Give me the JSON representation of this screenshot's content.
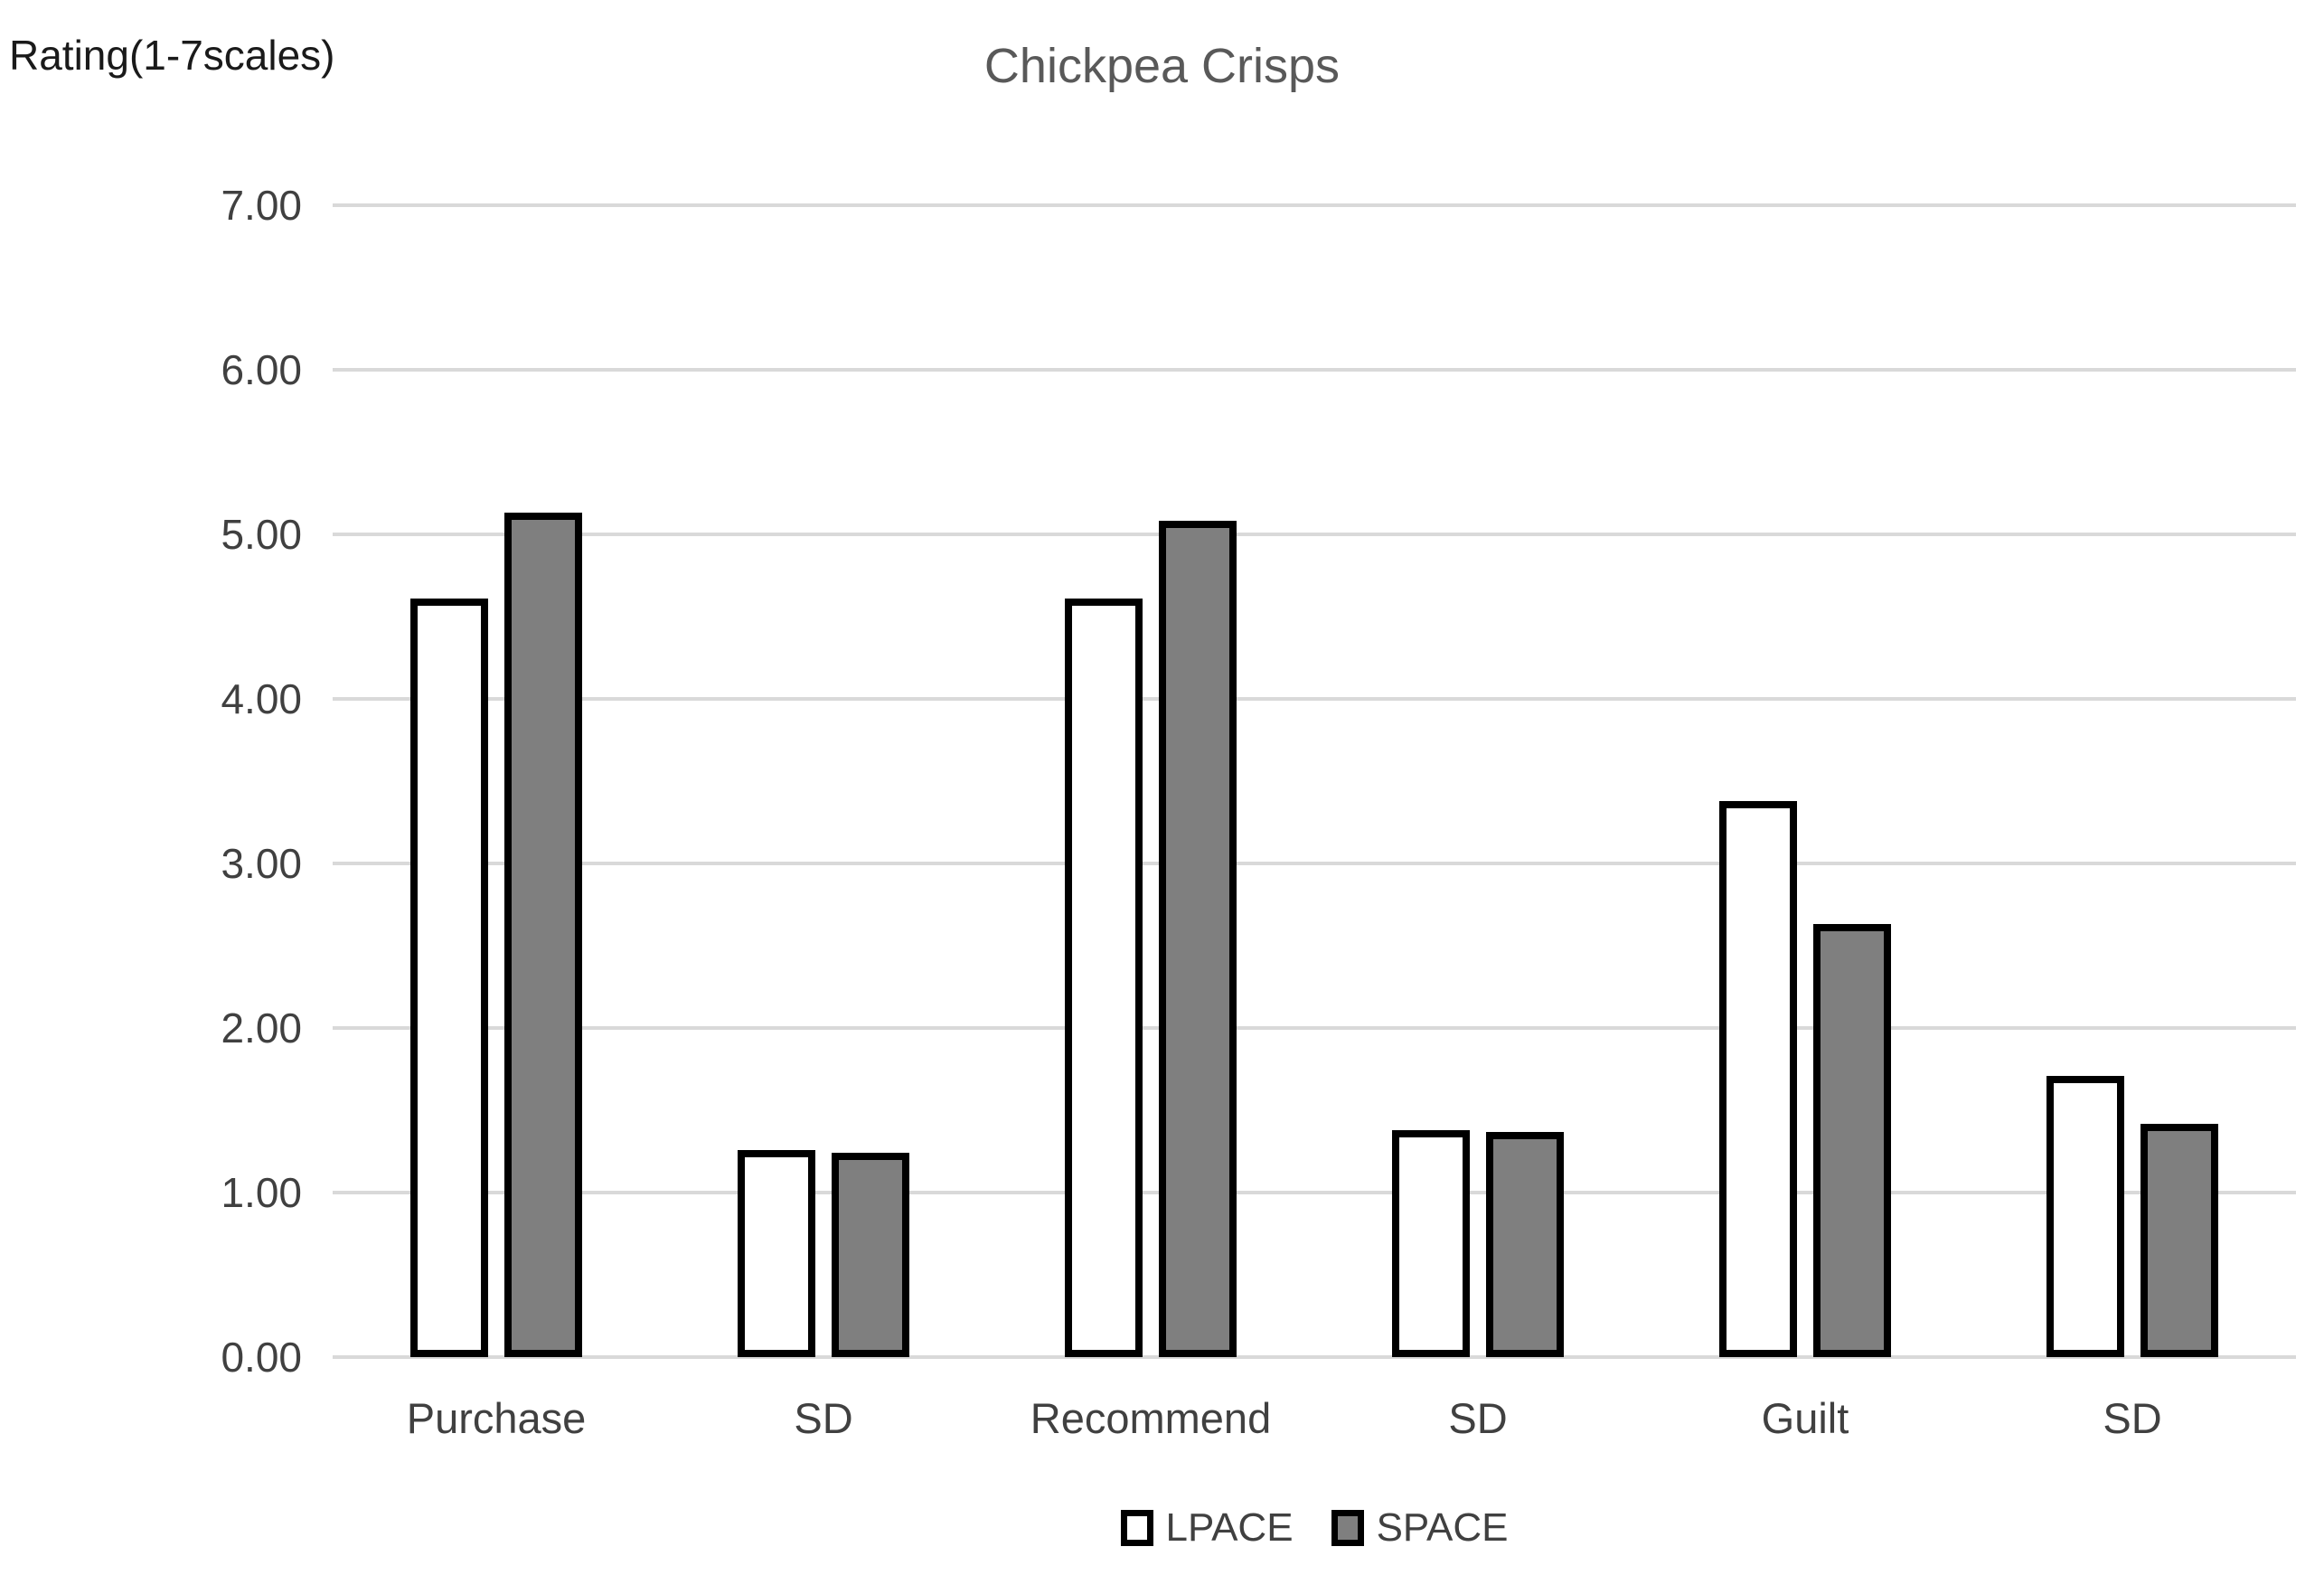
{
  "y_axis_label": "Rating(1-7scales)",
  "chart_data": {
    "type": "bar",
    "title": "Chickpea Crisps",
    "categories": [
      "Purchase",
      "SD",
      "Recommend",
      "SD",
      "Guilt",
      "SD"
    ],
    "series": [
      {
        "name": "LPACE",
        "fill": "#ffffff",
        "values": [
          4.61,
          1.26,
          4.61,
          1.38,
          3.38,
          1.71
        ]
      },
      {
        "name": "SPACE",
        "fill": "#7f7f7f",
        "values": [
          5.13,
          1.24,
          5.08,
          1.37,
          2.63,
          1.42
        ]
      }
    ],
    "xlabel": "",
    "ylabel": "Rating(1-7scales)",
    "ylim": [
      0,
      7
    ],
    "ytick_step": 1,
    "y_ticks": [
      "7.00",
      "6.00",
      "5.00",
      "4.00",
      "3.00",
      "2.00",
      "1.00",
      "0.00"
    ],
    "grid": true,
    "legend_position": "bottom",
    "colors": {
      "bar_outline": "#000000",
      "gridline": "#d9d9d9",
      "title_text": "#595959",
      "axis_text": "#404040"
    }
  }
}
